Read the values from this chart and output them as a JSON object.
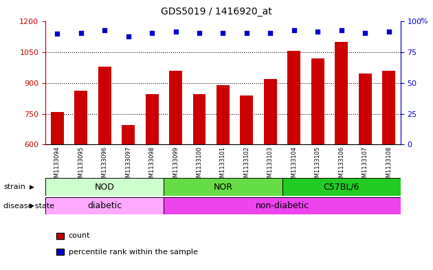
{
  "title": "GDS5019 / 1416920_at",
  "samples": [
    "GSM1133094",
    "GSM1133095",
    "GSM1133096",
    "GSM1133097",
    "GSM1133098",
    "GSM1133099",
    "GSM1133100",
    "GSM1133101",
    "GSM1133102",
    "GSM1133103",
    "GSM1133104",
    "GSM1133105",
    "GSM1133106",
    "GSM1133107",
    "GSM1133108"
  ],
  "counts": [
    760,
    862,
    980,
    695,
    845,
    960,
    845,
    888,
    840,
    920,
    1058,
    1020,
    1100,
    945,
    960
  ],
  "percentile_ranks": [
    90,
    91,
    93,
    88,
    91,
    92,
    91,
    91,
    91,
    91,
    93,
    92,
    93,
    91,
    92
  ],
  "ylim_left": [
    600,
    1200
  ],
  "ylim_right": [
    0,
    100
  ],
  "yticks_left": [
    600,
    750,
    900,
    1050,
    1200
  ],
  "yticks_right": [
    0,
    25,
    50,
    75,
    100
  ],
  "bar_color": "#cc0000",
  "dot_color": "#0000cc",
  "strain_groups": [
    {
      "label": "NOD",
      "start": 0,
      "end": 4,
      "color": "#ccffcc"
    },
    {
      "label": "NOR",
      "start": 5,
      "end": 9,
      "color": "#66dd44"
    },
    {
      "label": "C57BL/6",
      "start": 10,
      "end": 14,
      "color": "#22cc22"
    }
  ],
  "disease_groups": [
    {
      "label": "diabetic",
      "start": 0,
      "end": 4,
      "color": "#ffaaff"
    },
    {
      "label": "non-diabetic",
      "start": 5,
      "end": 14,
      "color": "#ee44ee"
    }
  ],
  "strain_label": "strain",
  "disease_label": "disease state",
  "legend_count_label": "count",
  "legend_pct_label": "percentile rank within the sample"
}
